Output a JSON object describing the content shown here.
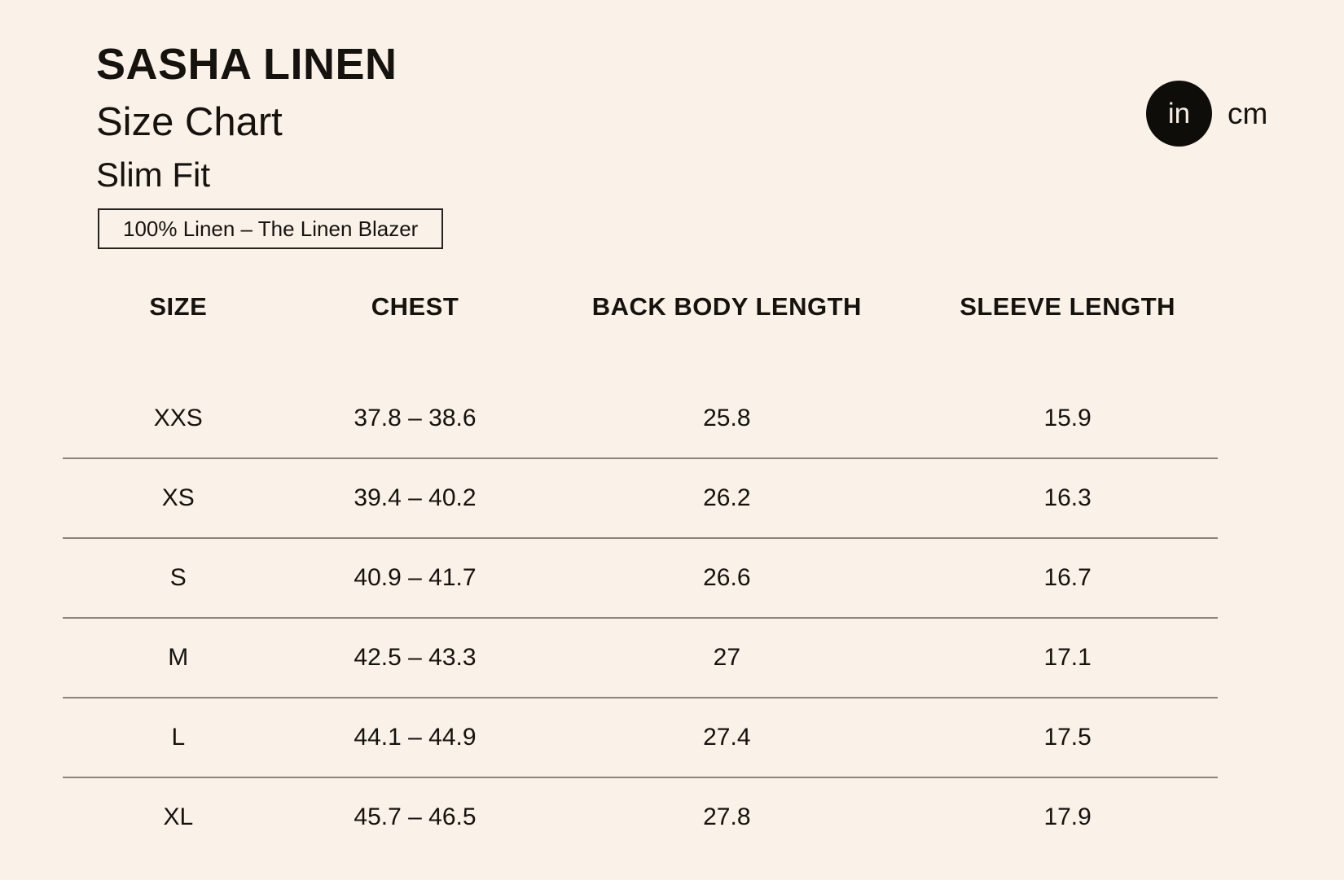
{
  "header": {
    "title": "SASHA LINEN",
    "subtitle": "Size Chart",
    "fit": "Slim Fit",
    "badge": "100% Linen – The Linen Blazer"
  },
  "unit_toggle": {
    "in_label": "in",
    "cm_label": "cm",
    "selected": "in"
  },
  "colors": {
    "background": "#FAF2E8",
    "text": "#16120E",
    "divider": "#8A847C",
    "active_unit_bg": "#0F0D0A",
    "active_unit_text": "#F7EFE5",
    "badge_border": "#26221D"
  },
  "table": {
    "headers": [
      "SIZE",
      "CHEST",
      "BACK BODY LENGTH",
      "SLEEVE LENGTH"
    ],
    "rows": [
      {
        "size": "XXS",
        "chest": "37.8 – 38.6",
        "back_body_length": "25.8",
        "sleeve_length": "15.9"
      },
      {
        "size": "XS",
        "chest": "39.4 – 40.2",
        "back_body_length": "26.2",
        "sleeve_length": "16.3"
      },
      {
        "size": "S",
        "chest": "40.9 – 41.7",
        "back_body_length": "26.6",
        "sleeve_length": "16.7"
      },
      {
        "size": "M",
        "chest": "42.5 – 43.3",
        "back_body_length": "27",
        "sleeve_length": "17.1"
      },
      {
        "size": "L",
        "chest": "44.1 – 44.9",
        "back_body_length": "27.4",
        "sleeve_length": "17.5"
      },
      {
        "size": "XL",
        "chest": "45.7 – 46.5",
        "back_body_length": "27.8",
        "sleeve_length": "17.9"
      }
    ]
  },
  "chart_data": {
    "type": "table",
    "title": "SASHA LINEN Size Chart – Slim Fit (inches)",
    "columns": [
      "SIZE",
      "CHEST",
      "BACK BODY LENGTH",
      "SLEEVE LENGTH"
    ],
    "rows": [
      [
        "XXS",
        "37.8 – 38.6",
        "25.8",
        "15.9"
      ],
      [
        "XS",
        "39.4 – 40.2",
        "26.2",
        "16.3"
      ],
      [
        "S",
        "40.9 – 41.7",
        "26.6",
        "16.7"
      ],
      [
        "M",
        "42.5 – 43.3",
        "27",
        "17.1"
      ],
      [
        "L",
        "44.1 – 44.9",
        "27.4",
        "17.5"
      ],
      [
        "XL",
        "45.7 – 46.5",
        "27.8",
        "17.9"
      ]
    ]
  }
}
